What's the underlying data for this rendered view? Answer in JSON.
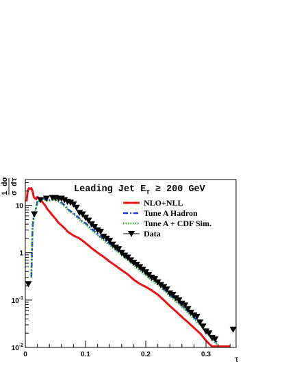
{
  "chart_data": {
    "type": "line",
    "title": "Leading Jet E",
    "title_sub": "T",
    "title_tail": " ≥ 200 GeV",
    "xlabel": "τ",
    "ylabel_top": "1 dσ",
    "ylabel_bottom": "σ dτ",
    "xlim": [
      0,
      0.35
    ],
    "ylim": [
      0.01,
      35
    ],
    "yscale": "log",
    "grid": false,
    "legend_position": "top-right",
    "x_ticks": [
      {
        "value": 0,
        "label": "0"
      },
      {
        "value": 0.1,
        "label": "0.1"
      },
      {
        "value": 0.2,
        "label": "0.2"
      },
      {
        "value": 0.3,
        "label": "0.3"
      }
    ],
    "y_ticks": [
      {
        "value": 0.01,
        "label": "10",
        "exp": "-2"
      },
      {
        "value": 0.1,
        "label": "10",
        "exp": "-1"
      },
      {
        "value": 1,
        "label": "1",
        "exp": ""
      },
      {
        "value": 10,
        "label": "10",
        "exp": ""
      }
    ],
    "series": [
      {
        "name": "NLO+NLL",
        "style": "solid",
        "color": "#ee1111",
        "x": [
          0.002,
          0.004,
          0.006,
          0.008,
          0.01,
          0.012,
          0.014,
          0.016,
          0.018,
          0.02,
          0.022,
          0.025,
          0.028,
          0.03,
          0.033,
          0.036,
          0.04,
          0.045,
          0.05,
          0.055,
          0.06,
          0.065,
          0.07,
          0.08,
          0.09,
          0.1,
          0.11,
          0.12,
          0.13,
          0.14,
          0.15,
          0.16,
          0.17,
          0.18,
          0.19,
          0.2,
          0.21,
          0.22,
          0.23,
          0.24,
          0.25,
          0.26,
          0.27,
          0.28,
          0.29,
          0.3,
          0.305,
          0.31,
          0.32,
          0.33,
          0.34
        ],
        "y": [
          12,
          20,
          23,
          22,
          23,
          20,
          15,
          14,
          13.5,
          15,
          14,
          13,
          12,
          11,
          10,
          8.5,
          7.4,
          6.2,
          5.2,
          4.3,
          3.8,
          3.3,
          2.8,
          2.3,
          2.0,
          1.6,
          1.25,
          1.0,
          0.82,
          0.65,
          0.53,
          0.43,
          0.35,
          0.27,
          0.22,
          0.19,
          0.16,
          0.13,
          0.1,
          0.075,
          0.058,
          0.044,
          0.034,
          0.026,
          0.02,
          0.014,
          0.012,
          0.0105,
          0.0105,
          0.0105,
          0.0105
        ]
      },
      {
        "name": "Tune A Hadron",
        "style": "dash-dot",
        "color": "#1a3aee",
        "x": [
          0.01,
          0.012,
          0.014,
          0.016,
          0.018,
          0.02,
          0.025,
          0.03,
          0.035,
          0.04,
          0.045,
          0.05,
          0.055,
          0.06,
          0.065,
          0.07,
          0.075,
          0.08,
          0.085,
          0.09,
          0.095,
          0.1,
          0.11,
          0.12,
          0.13,
          0.14,
          0.15,
          0.16,
          0.17,
          0.18,
          0.19,
          0.2,
          0.21,
          0.22,
          0.23,
          0.24,
          0.25,
          0.26,
          0.27,
          0.28,
          0.29,
          0.3,
          0.31,
          0.32
        ],
        "y": [
          0.3,
          3.5,
          6,
          7,
          9,
          12,
          13.5,
          14,
          13,
          13,
          14,
          13.5,
          13,
          11.5,
          10,
          8.5,
          7.5,
          6.8,
          6,
          5.3,
          4.5,
          4.2,
          3.2,
          2.5,
          1.95,
          1.55,
          1.2,
          0.95,
          0.75,
          0.58,
          0.46,
          0.36,
          0.29,
          0.23,
          0.17,
          0.13,
          0.1,
          0.078,
          0.058,
          0.043,
          0.032,
          0.023,
          0.017,
          0.012
        ]
      },
      {
        "name": "Tune A + CDF Sim.",
        "style": "dotted",
        "color": "#22aa22",
        "x": [
          0.01,
          0.012,
          0.014,
          0.016,
          0.018,
          0.02,
          0.025,
          0.03,
          0.035,
          0.04,
          0.045,
          0.05,
          0.055,
          0.06,
          0.065,
          0.07,
          0.075,
          0.08,
          0.085,
          0.09,
          0.095,
          0.1,
          0.11,
          0.12,
          0.13,
          0.14,
          0.15,
          0.16,
          0.17,
          0.18,
          0.19,
          0.2,
          0.21,
          0.22,
          0.23,
          0.24,
          0.25,
          0.26,
          0.27,
          0.28,
          0.29,
          0.3,
          0.31,
          0.32
        ],
        "y": [
          0.3,
          3.3,
          5.8,
          7,
          9,
          11.5,
          13,
          13.5,
          12.5,
          12.5,
          13.5,
          13,
          12,
          11,
          9.5,
          8.2,
          7.2,
          6.5,
          5.7,
          5.0,
          4.3,
          4.0,
          3.0,
          2.35,
          1.85,
          1.45,
          1.12,
          0.88,
          0.7,
          0.54,
          0.42,
          0.33,
          0.26,
          0.21,
          0.16,
          0.12,
          0.093,
          0.072,
          0.054,
          0.04,
          0.03,
          0.021,
          0.015,
          0.011
        ]
      },
      {
        "name": "Data",
        "style": "markers",
        "color": "#000000",
        "x": [
          0.005,
          0.015,
          0.025,
          0.035,
          0.045,
          0.05,
          0.055,
          0.06,
          0.065,
          0.07,
          0.075,
          0.08,
          0.085,
          0.09,
          0.095,
          0.1,
          0.105,
          0.11,
          0.115,
          0.12,
          0.125,
          0.13,
          0.135,
          0.14,
          0.145,
          0.15,
          0.155,
          0.16,
          0.165,
          0.17,
          0.175,
          0.18,
          0.185,
          0.19,
          0.195,
          0.2,
          0.205,
          0.21,
          0.215,
          0.22,
          0.225,
          0.23,
          0.235,
          0.24,
          0.245,
          0.25,
          0.255,
          0.26,
          0.265,
          0.27,
          0.275,
          0.28,
          0.285,
          0.29,
          0.295,
          0.3,
          0.305,
          0.31,
          0.315,
          0.345
        ],
        "y": [
          0.22,
          6.5,
          13,
          14,
          14.5,
          14.5,
          14,
          14,
          13,
          12,
          11.5,
          10.5,
          9,
          7,
          6.5,
          5.5,
          4.8,
          4.0,
          3.5,
          3.0,
          2.8,
          2.2,
          2.0,
          1.8,
          1.5,
          1.3,
          1.2,
          1.0,
          0.88,
          0.8,
          0.7,
          0.62,
          0.56,
          0.5,
          0.44,
          0.39,
          0.34,
          0.3,
          0.28,
          0.24,
          0.21,
          0.19,
          0.17,
          0.14,
          0.13,
          0.11,
          0.1,
          0.085,
          0.078,
          0.065,
          0.055,
          0.048,
          0.045,
          0.034,
          0.028,
          0.022,
          0.02,
          0.016,
          0.015,
          0.024
        ]
      }
    ]
  }
}
